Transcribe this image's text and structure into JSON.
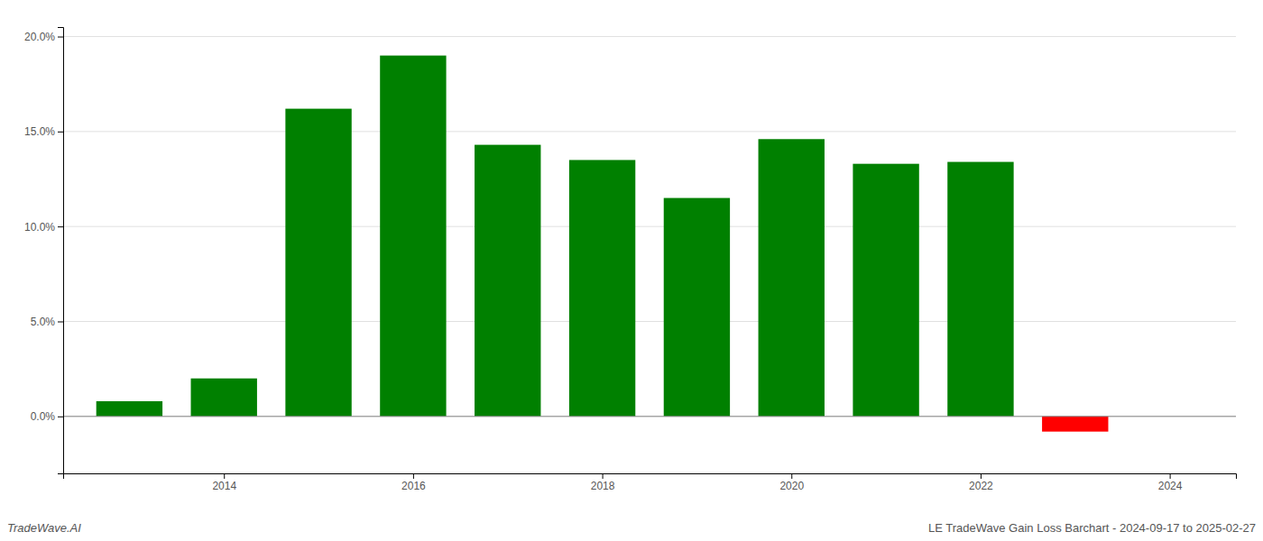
{
  "chart_data": {
    "type": "bar",
    "title": "LE TradeWave Gain Loss Barchart - 2024-09-17 to 2025-02-27",
    "annotations": [
      "TradeWave.AI"
    ],
    "x": [
      2013,
      2014,
      2015,
      2016,
      2017,
      2018,
      2019,
      2020,
      2021,
      2022,
      2023
    ],
    "values": [
      0.008,
      0.02,
      0.162,
      0.19,
      0.143,
      0.135,
      0.115,
      0.146,
      0.133,
      0.134,
      -0.008
    ],
    "colors": [
      "#008000",
      "#008000",
      "#008000",
      "#008000",
      "#008000",
      "#008000",
      "#008000",
      "#008000",
      "#008000",
      "#008000",
      "#ff0000"
    ],
    "xlim": [
      2012.3,
      2024.7
    ],
    "xticks": [
      2014,
      2016,
      2018,
      2020,
      2022,
      2024
    ],
    "ylim": [
      -0.03,
      0.205
    ],
    "yticks": [
      {
        "value": 0.0,
        "label": "0.0%"
      },
      {
        "value": 0.05,
        "label": "5.0%"
      },
      {
        "value": 0.1,
        "label": "10.0%"
      },
      {
        "value": 0.15,
        "label": "15.0%"
      },
      {
        "value": 0.2,
        "label": "20.0%"
      }
    ],
    "grid": true
  }
}
